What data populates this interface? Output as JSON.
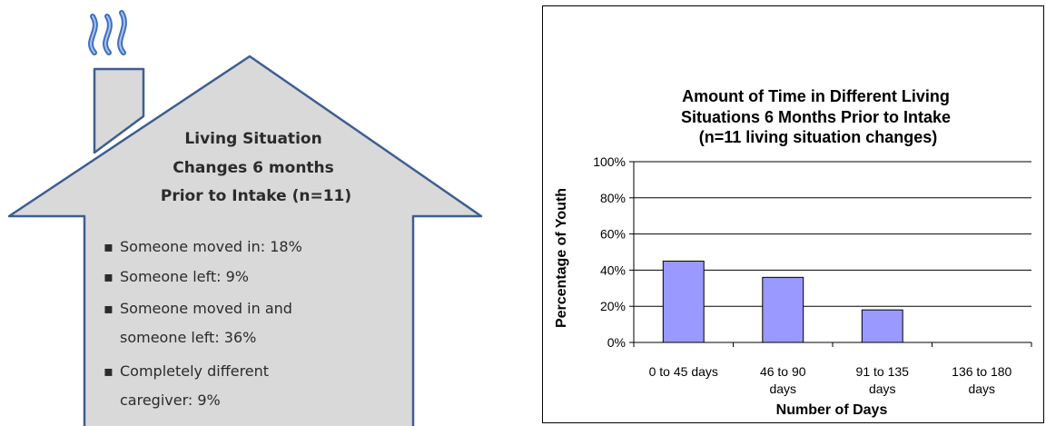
{
  "infographic": {
    "title_lines": [
      "Living Situation",
      "Changes 6 months",
      "Prior to Intake (n=11)"
    ],
    "bullets": [
      {
        "lines": [
          "Someone moved in: 18%"
        ]
      },
      {
        "lines": [
          "Someone left:  9%"
        ]
      },
      {
        "lines": [
          "Someone moved in and",
          "someone left:  36%"
        ]
      },
      {
        "lines": [
          "Completely different",
          "caregiver: 9%"
        ]
      }
    ],
    "bullet_glyph": "▪",
    "icons": {
      "smoke": "smoke-icon",
      "chimney": "chimney-icon"
    },
    "colors": {
      "house_fill": "#d9d9d9",
      "house_stroke": "#3e5e93",
      "smoke": "#3f6fbf"
    }
  },
  "chart_data": {
    "type": "bar",
    "title_lines": [
      "Amount of Time in Different Living",
      "Situations 6 Months Prior to Intake",
      "(n=11 living situation changes)"
    ],
    "xlabel": "Number of Days",
    "ylabel": "Percentage of Youth",
    "categories": [
      {
        "label_lines": [
          "0 to 45 days"
        ]
      },
      {
        "label_lines": [
          "46 to 90",
          "days"
        ]
      },
      {
        "label_lines": [
          "91 to 135",
          "days"
        ]
      },
      {
        "label_lines": [
          "136 to 180",
          "days"
        ]
      }
    ],
    "values": [
      45,
      36,
      18,
      0
    ],
    "ylim": [
      0,
      100
    ],
    "yticks": [
      {
        "value": 0,
        "label": "0%"
      },
      {
        "value": 20,
        "label": "20%"
      },
      {
        "value": 40,
        "label": "40%"
      },
      {
        "value": 60,
        "label": "60%"
      },
      {
        "value": 80,
        "label": "80%"
      },
      {
        "value": 100,
        "label": "100%"
      }
    ],
    "grid": true,
    "legend": "none",
    "colors": {
      "bar_fill": "#9999ff",
      "bar_stroke": "#000000"
    }
  }
}
